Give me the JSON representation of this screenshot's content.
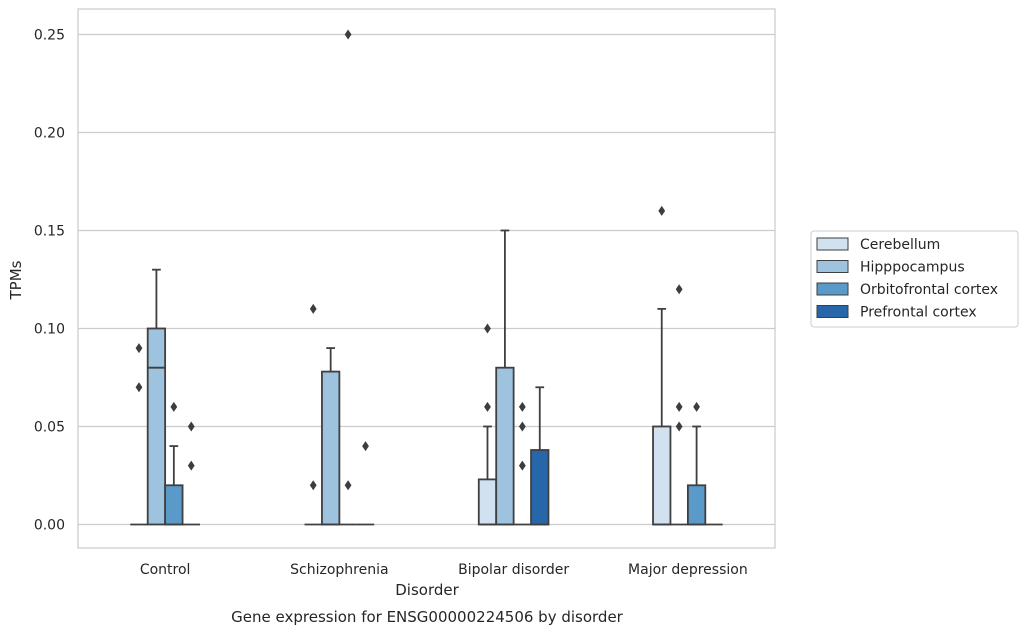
{
  "chart_data": {
    "type": "box",
    "title": "",
    "xlabel": "Disorder",
    "ylabel": "TPMs",
    "caption": "Gene expression for ENSG00000224506 by disorder",
    "categories": [
      "Control",
      "Schizophrenia",
      "Bipolar disorder",
      "Major depression"
    ],
    "ylim": [
      -0.012,
      0.263
    ],
    "yticks": [
      0.0,
      0.05,
      0.1,
      0.15,
      0.2,
      0.25
    ],
    "ytick_labels": [
      "0.00",
      "0.05",
      "0.10",
      "0.15",
      "0.20",
      "0.25"
    ],
    "grid": true,
    "legend_position": "right",
    "series": [
      {
        "name": "Cerebellum",
        "color": "#d1e1ef",
        "boxes": [
          {
            "category": "Control",
            "q1": 0.0,
            "median": 0.0,
            "q3": 0.0,
            "whisker_low": 0.0,
            "whisker_high": 0.0,
            "outliers": [
              0.07,
              0.09
            ]
          },
          {
            "category": "Schizophrenia",
            "q1": 0.0,
            "median": 0.0,
            "q3": 0.0,
            "whisker_low": 0.0,
            "whisker_high": 0.0,
            "outliers": [
              0.02,
              0.11
            ]
          },
          {
            "category": "Bipolar disorder",
            "q1": 0.0,
            "median": 0.0,
            "q3": 0.023,
            "whisker_low": 0.0,
            "whisker_high": 0.05,
            "outliers": [
              0.06,
              0.1
            ]
          },
          {
            "category": "Major depression",
            "q1": 0.0,
            "median": 0.0,
            "q3": 0.05,
            "whisker_low": 0.0,
            "whisker_high": 0.11,
            "outliers": [
              0.16
            ]
          }
        ]
      },
      {
        "name": "Hipppocampus",
        "color": "#9dc3de",
        "boxes": [
          {
            "category": "Control",
            "q1": 0.0,
            "median": 0.08,
            "q3": 0.1,
            "whisker_low": 0.0,
            "whisker_high": 0.13,
            "outliers": []
          },
          {
            "category": "Schizophrenia",
            "q1": 0.0,
            "median": 0.0,
            "q3": 0.078,
            "whisker_low": 0.0,
            "whisker_high": 0.09,
            "outliers": []
          },
          {
            "category": "Bipolar disorder",
            "q1": 0.0,
            "median": 0.0,
            "q3": 0.08,
            "whisker_low": 0.0,
            "whisker_high": 0.15,
            "outliers": []
          },
          {
            "category": "Major depression",
            "q1": 0.0,
            "median": 0.0,
            "q3": 0.0,
            "whisker_low": 0.0,
            "whisker_high": 0.0,
            "outliers": [
              0.05,
              0.06,
              0.12
            ]
          }
        ]
      },
      {
        "name": "Orbitofrontal cortex",
        "color": "#5a9ac8",
        "boxes": [
          {
            "category": "Control",
            "q1": 0.0,
            "median": 0.0,
            "q3": 0.02,
            "whisker_low": 0.0,
            "whisker_high": 0.04,
            "outliers": [
              0.06
            ]
          },
          {
            "category": "Schizophrenia",
            "q1": 0.0,
            "median": 0.0,
            "q3": 0.0,
            "whisker_low": 0.0,
            "whisker_high": 0.0,
            "outliers": [
              0.02,
              0.25
            ]
          },
          {
            "category": "Bipolar disorder",
            "q1": 0.0,
            "median": 0.0,
            "q3": 0.0,
            "whisker_low": 0.0,
            "whisker_high": 0.0,
            "outliers": [
              0.03,
              0.05,
              0.06
            ]
          },
          {
            "category": "Major depression",
            "q1": 0.0,
            "median": 0.0,
            "q3": 0.02,
            "whisker_low": 0.0,
            "whisker_high": 0.05,
            "outliers": [
              0.06
            ]
          }
        ]
      },
      {
        "name": "Prefrontal cortex",
        "color": "#2767a9",
        "boxes": [
          {
            "category": "Control",
            "q1": 0.0,
            "median": 0.0,
            "q3": 0.0,
            "whisker_low": 0.0,
            "whisker_high": 0.0,
            "outliers": [
              0.03,
              0.05
            ]
          },
          {
            "category": "Schizophrenia",
            "q1": 0.0,
            "median": 0.0,
            "q3": 0.0,
            "whisker_low": 0.0,
            "whisker_high": 0.0,
            "outliers": [
              0.04
            ]
          },
          {
            "category": "Bipolar disorder",
            "q1": 0.0,
            "median": 0.0,
            "q3": 0.038,
            "whisker_low": 0.0,
            "whisker_high": 0.07,
            "outliers": []
          },
          {
            "category": "Major depression",
            "q1": 0.0,
            "median": 0.0,
            "q3": 0.0,
            "whisker_low": 0.0,
            "whisker_high": 0.0,
            "outliers": []
          }
        ]
      }
    ]
  }
}
